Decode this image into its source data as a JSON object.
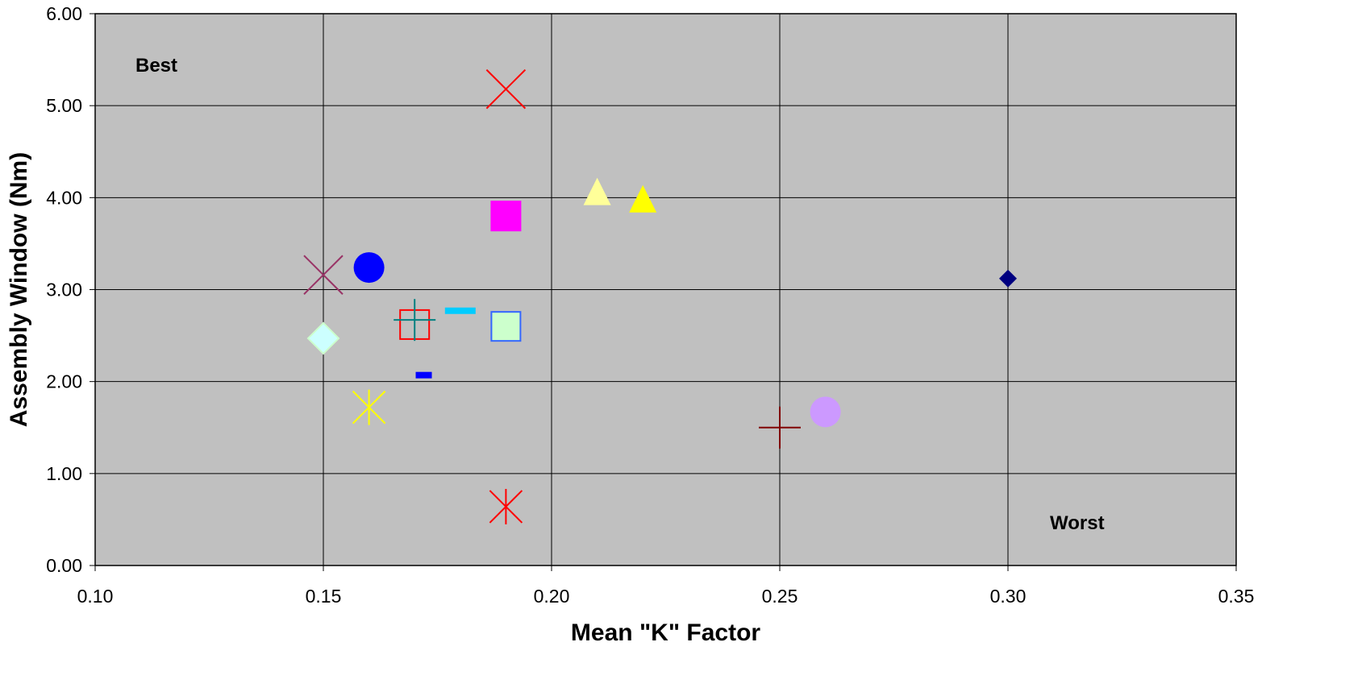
{
  "chart_data": {
    "type": "scatter",
    "xlabel": "Mean \"K\" Factor",
    "ylabel": "Assembly Window (Nm)",
    "xlim": [
      0.1,
      0.35
    ],
    "ylim": [
      0.0,
      6.0
    ],
    "x_ticks": [
      "0.10",
      "0.15",
      "0.20",
      "0.25",
      "0.30",
      "0.35"
    ],
    "y_ticks": [
      "0.00",
      "1.00",
      "2.00",
      "3.00",
      "4.00",
      "5.00",
      "6.00"
    ],
    "grid": true,
    "plot_background": "#c0c0c0",
    "annotations": [
      {
        "text": "Best",
        "position": "top-left"
      },
      {
        "text": "Worst",
        "position": "bottom-right"
      }
    ],
    "points": [
      {
        "x": 0.19,
        "y": 5.18,
        "marker": "x",
        "color": "#ff0000"
      },
      {
        "x": 0.21,
        "y": 4.05,
        "marker": "triangle",
        "color": "#ffff99"
      },
      {
        "x": 0.22,
        "y": 3.97,
        "marker": "triangle",
        "color": "#ffff00"
      },
      {
        "x": 0.19,
        "y": 3.8,
        "marker": "square",
        "color": "#ff00ff"
      },
      {
        "x": 0.15,
        "y": 3.16,
        "marker": "x",
        "color": "#993366"
      },
      {
        "x": 0.16,
        "y": 3.24,
        "marker": "circle",
        "color": "#0000ff"
      },
      {
        "x": 0.3,
        "y": 3.12,
        "marker": "diamond",
        "color": "#000080"
      },
      {
        "x": 0.18,
        "y": 2.77,
        "marker": "dash",
        "color": "#00ccff"
      },
      {
        "x": 0.17,
        "y": 2.62,
        "marker": "square-open",
        "color": "#ff0000"
      },
      {
        "x": 0.17,
        "y": 2.67,
        "marker": "plus",
        "color": "#008080"
      },
      {
        "x": 0.19,
        "y": 2.6,
        "marker": "square-outline",
        "color": "#ccffcc",
        "edge": "#3366ff"
      },
      {
        "x": 0.15,
        "y": 2.47,
        "marker": "diamond",
        "color": "#ccffff",
        "edge": "#ccffcc"
      },
      {
        "x": 0.172,
        "y": 2.07,
        "marker": "dash",
        "color": "#0000ff"
      },
      {
        "x": 0.16,
        "y": 1.72,
        "marker": "asterisk",
        "color": "#ffff00"
      },
      {
        "x": 0.25,
        "y": 1.5,
        "marker": "plus",
        "color": "#800000"
      },
      {
        "x": 0.26,
        "y": 1.67,
        "marker": "circle",
        "color": "#cc99ff"
      },
      {
        "x": 0.19,
        "y": 0.64,
        "marker": "asterisk",
        "color": "#ff0000"
      }
    ]
  }
}
